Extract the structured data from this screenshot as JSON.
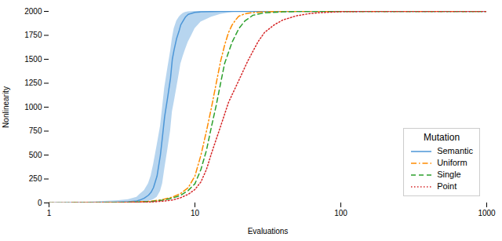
{
  "chart_data": {
    "type": "line",
    "xlabel": "Evaluations",
    "ylabel": "Nonlinearity",
    "log": "x",
    "xlim": [
      1,
      1000
    ],
    "xticks": [
      1,
      10,
      100,
      1000
    ],
    "ylim": [
      0,
      2000
    ],
    "yticks": [
      0,
      250,
      500,
      750,
      1000,
      1250,
      1500,
      1750,
      2000
    ],
    "legend": "lower right",
    "legend_title": "Mutation",
    "series": [
      {
        "name": "Semantic",
        "color": "#4c96d7",
        "line_style": "solid",
        "x": [
          1.0,
          1.5,
          2.0,
          2.5,
          3.0,
          3.5,
          4.0,
          4.2,
          4.5,
          4.8,
          5.0,
          5.2,
          5.5,
          5.8,
          6.0,
          6.2,
          6.5,
          6.8,
          7.0,
          7.2,
          7.5,
          7.8,
          8.0,
          8.3,
          8.6,
          9.0,
          9.5,
          10.0,
          11.0,
          13.0,
          15.0,
          18.0,
          20.0,
          25.0,
          30.0,
          50.0,
          100.0,
          200.0,
          500.0,
          1000.0
        ],
        "values": [
          0,
          2,
          3,
          5,
          8,
          12,
          20,
          30,
          50,
          80,
          110,
          160,
          280,
          500,
          700,
          900,
          1100,
          1300,
          1500,
          1600,
          1720,
          1800,
          1860,
          1900,
          1940,
          1970,
          1980,
          1990,
          1995,
          1998,
          1999,
          2000,
          2000,
          2000,
          2000,
          2000,
          2000,
          2000,
          2000,
          2000
        ],
        "lower": [
          0,
          0,
          0,
          0,
          0,
          2,
          5,
          8,
          12,
          18,
          25,
          35,
          60,
          120,
          200,
          350,
          550,
          750,
          950,
          1050,
          1200,
          1350,
          1450,
          1530,
          1600,
          1680,
          1750,
          1820,
          1890,
          1940,
          1970,
          1990,
          1995,
          2000,
          2000,
          2000,
          2000,
          2000,
          2000,
          2000
        ],
        "upper": [
          2,
          5,
          10,
          18,
          25,
          35,
          60,
          90,
          130,
          200,
          280,
          400,
          600,
          800,
          1000,
          1200,
          1400,
          1580,
          1720,
          1820,
          1900,
          1940,
          1960,
          1980,
          1990,
          1995,
          1998,
          2000,
          2000,
          2000,
          2000,
          2000,
          2000,
          2000,
          2000,
          2000,
          2000,
          2000,
          2000,
          2000
        ]
      },
      {
        "name": "Uniform",
        "color": "#ff8c00",
        "line_style": "dashdot",
        "x": [
          1.0,
          2.0,
          3.0,
          4.0,
          5.0,
          6.0,
          7.0,
          8.0,
          9.0,
          10.0,
          11.0,
          12.0,
          13.0,
          14.0,
          15.0,
          16.0,
          17.0,
          18.0,
          19.0,
          20.0,
          22.0,
          25.0,
          30.0,
          40.0,
          50.0,
          70.0,
          100.0,
          200.0,
          500.0,
          1000.0
        ],
        "values": [
          0,
          2,
          5,
          10,
          18,
          35,
          60,
          100,
          160,
          280,
          500,
          750,
          1000,
          1250,
          1480,
          1650,
          1780,
          1860,
          1910,
          1950,
          1975,
          1988,
          1995,
          1999,
          2000,
          2000,
          2000,
          2000,
          2000,
          2000
        ]
      },
      {
        "name": "Single",
        "color": "#2ca02c",
        "line_style": "dashed",
        "x": [
          1.0,
          2.0,
          3.0,
          4.0,
          5.0,
          6.0,
          7.0,
          8.0,
          9.0,
          10.0,
          11.0,
          12.0,
          13.0,
          14.0,
          15.0,
          16.0,
          18.0,
          20.0,
          22.0,
          25.0,
          30.0,
          40.0,
          50.0,
          70.0,
          100.0,
          200.0,
          500.0,
          1000.0
        ],
        "values": [
          0,
          2,
          4,
          8,
          15,
          28,
          50,
          80,
          130,
          200,
          350,
          550,
          800,
          1020,
          1250,
          1460,
          1680,
          1820,
          1900,
          1960,
          1985,
          1995,
          1999,
          2000,
          2000,
          2000,
          2000,
          2000
        ]
      },
      {
        "name": "Point",
        "color": "#d62728",
        "line_style": "dotted",
        "x": [
          1.0,
          2.0,
          3.0,
          4.0,
          5.0,
          6.0,
          7.0,
          8.0,
          9.0,
          10.0,
          11.0,
          12.0,
          13.0,
          15.0,
          17.0,
          20.0,
          23.0,
          27.0,
          30.0,
          35.0,
          40.0,
          50.0,
          60.0,
          70.0,
          80.0,
          100.0,
          150.0,
          200.0,
          300.0,
          500.0,
          1000.0
        ],
        "values": [
          0,
          2,
          3,
          6,
          10,
          18,
          30,
          55,
          90,
          140,
          220,
          350,
          520,
          800,
          1050,
          1280,
          1480,
          1680,
          1780,
          1860,
          1910,
          1955,
          1975,
          1985,
          1990,
          1997,
          2000,
          2000,
          2000,
          2000,
          2000
        ]
      }
    ]
  }
}
